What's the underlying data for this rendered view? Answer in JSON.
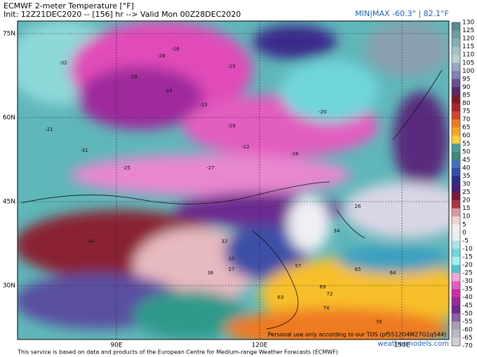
{
  "header": {
    "title": "ECMWF 2-meter Temperature [°F]",
    "init": "Init: 12Z21DEC2020 -- [156] hr --> Valid Mon 00Z28DEC2020",
    "minmax": "MIN|MAX -60.3° | 82.1°F"
  },
  "lat_labels": [
    "75N",
    "60N",
    "45N",
    "30N"
  ],
  "lon_labels": [
    "90E",
    "120E",
    "150E"
  ],
  "map_labels": [
    -32,
    -28,
    -21,
    -24,
    -19,
    -29,
    -23,
    -27,
    -22,
    -31,
    -25,
    -16,
    -15,
    -20,
    -26,
    35,
    44,
    27,
    36,
    32,
    57,
    65,
    69,
    72,
    78,
    64,
    63,
    74,
    34,
    26
  ],
  "colorbar": {
    "ticks": [
      130,
      125,
      120,
      115,
      110,
      105,
      100,
      95,
      90,
      85,
      80,
      75,
      70,
      65,
      60,
      55,
      50,
      45,
      40,
      35,
      30,
      25,
      20,
      15,
      10,
      5,
      0,
      -5,
      -10,
      -15,
      -20,
      -25,
      -30,
      -35,
      -40,
      -45,
      -50,
      -55,
      -60,
      -65,
      -70
    ],
    "colors": [
      "#5d8a8f",
      "#6f9ea1",
      "#85b0b2",
      "#a1c3c4",
      "#b8cfd0",
      "#9aa7c2",
      "#7f83b3",
      "#6a4f96",
      "#5a2a6e",
      "#7a1d2a",
      "#a8272b",
      "#d2452a",
      "#ee7a22",
      "#f7a51e",
      "#f8d23a",
      "#4e9c96",
      "#3b8a7a",
      "#3f73b8",
      "#3550a8",
      "#2a2f86",
      "#4a1f7a",
      "#7a1a3e",
      "#a8373f",
      "#d89aa0",
      "#efd3d5",
      "#f5ecee",
      "#e4f1f1",
      "#a9e4e6",
      "#6fd6dc",
      "#9ff2f2",
      "#4fc4cf",
      "#f0a7d6",
      "#e25dc0",
      "#d22aa8",
      "#9e2a9c",
      "#6e2a8f",
      "#8d5fa4",
      "#a5a0b0",
      "#bbb9c2",
      "#d0cfd6"
    ]
  },
  "footer": {
    "credit": "This service is based on data and products of the European Centre for Medium-range Weather Forecasts (ECMWF)",
    "tos": "Personal use only according to our TOS (pf5512O4M27G1q544)",
    "site": "weathermodels.com"
  }
}
